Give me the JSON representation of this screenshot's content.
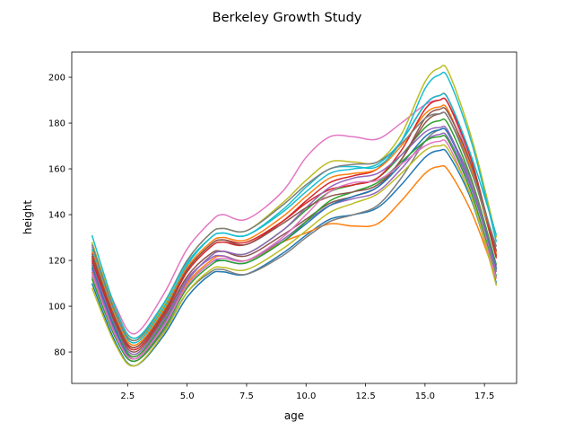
{
  "chart_data": {
    "type": "line",
    "title": "Berkeley Growth Study",
    "xlabel": "age",
    "ylabel": "height",
    "xlim": [
      0.15,
      18.85
    ],
    "ylim": [
      66.3,
      211
    ],
    "xticks": [
      2.5,
      5.0,
      7.5,
      10.0,
      12.5,
      15.0,
      17.5
    ],
    "xtick_labels": [
      "2.5",
      "5.0",
      "7.5",
      "10.0",
      "12.5",
      "15.0",
      "17.5"
    ],
    "yticks": [
      80,
      100,
      120,
      140,
      160,
      180,
      200
    ],
    "ytick_labels": [
      "80",
      "100",
      "120",
      "140",
      "160",
      "180",
      "200"
    ],
    "grid": false,
    "legend": "none",
    "colors": [
      "#1f77b4",
      "#ff7f0e",
      "#2ca02c",
      "#d62728",
      "#9467bd",
      "#8c564b",
      "#e377c2",
      "#7f7f7f",
      "#bcbd22",
      "#17becf"
    ],
    "x": [
      1,
      2,
      2.8,
      4,
      5,
      6,
      6.5,
      7.5,
      9,
      10,
      11,
      12,
      13,
      14,
      15,
      15.6,
      16,
      17,
      18
    ],
    "series": [
      {
        "values": [
          110,
          84,
          74,
          87,
          104,
          114,
          115,
          114,
          123,
          131,
          138,
          140,
          143,
          153,
          165,
          168,
          166,
          145,
          110
        ]
      },
      {
        "values": [
          115,
          88,
          78,
          92,
          110,
          120,
          122,
          120,
          128,
          132,
          136,
          135,
          136,
          146,
          158,
          161,
          159,
          140,
          112
        ]
      },
      {
        "values": [
          118,
          90,
          78,
          93,
          111,
          122,
          124,
          123,
          133,
          142,
          150,
          153,
          156,
          166,
          178,
          181,
          179,
          154,
          118
        ]
      },
      {
        "values": [
          122,
          93,
          81,
          96,
          115,
          126,
          128,
          127,
          137,
          146,
          154,
          157,
          160,
          172,
          188,
          192,
          190,
          162,
          122
        ]
      },
      {
        "values": [
          119,
          91,
          79,
          94,
          112,
          121,
          122,
          120,
          129,
          137,
          144,
          147,
          150,
          160,
          172,
          175,
          173,
          150,
          117
        ]
      },
      {
        "values": [
          121,
          92,
          80,
          95,
          113,
          123,
          124,
          122,
          131,
          138,
          145,
          148,
          152,
          164,
          180,
          184,
          182,
          158,
          121
        ]
      },
      {
        "values": [
          126,
          100,
          88,
          105,
          125,
          137,
          140,
          138,
          150,
          165,
          174,
          174,
          173,
          180,
          188,
          190,
          188,
          160,
          124
        ]
      },
      {
        "values": [
          113,
          86,
          76,
          89,
          106,
          115,
          116,
          114,
          122,
          130,
          137,
          140,
          144,
          156,
          172,
          177,
          175,
          153,
          116
        ]
      },
      {
        "values": [
          128,
          98,
          85,
          100,
          120,
          132,
          134,
          133,
          145,
          155,
          163,
          163,
          163,
          175,
          198,
          204,
          202,
          172,
          130
        ]
      },
      {
        "values": [
          125,
          96,
          84,
          99,
          118,
          130,
          132,
          131,
          142,
          152,
          160,
          161,
          161,
          172,
          195,
          201,
          199,
          170,
          128
        ]
      },
      {
        "values": [
          117,
          89,
          77,
          91,
          109,
          119,
          120,
          119,
          128,
          136,
          144,
          148,
          152,
          162,
          174,
          177,
          175,
          151,
          116
        ]
      },
      {
        "values": [
          124,
          95,
          83,
          98,
          117,
          128,
          130,
          129,
          139,
          148,
          156,
          158,
          160,
          170,
          184,
          187,
          185,
          158,
          123
        ]
      },
      {
        "values": [
          112,
          86,
          76,
          90,
          108,
          118,
          120,
          119,
          128,
          137,
          146,
          150,
          154,
          163,
          172,
          174,
          172,
          148,
          113
        ]
      },
      {
        "values": [
          120,
          93,
          82,
          97,
          116,
          127,
          129,
          128,
          137,
          145,
          151,
          153,
          156,
          168,
          186,
          190,
          188,
          162,
          121
        ]
      },
      {
        "values": [
          116,
          88,
          77,
          92,
          111,
          122,
          124,
          123,
          133,
          143,
          152,
          156,
          158,
          166,
          176,
          178,
          176,
          151,
          115
        ]
      },
      {
        "values": [
          123,
          94,
          82,
          97,
          116,
          127,
          129,
          127,
          136,
          143,
          148,
          150,
          153,
          164,
          182,
          186,
          184,
          160,
          124
        ]
      },
      {
        "values": [
          114,
          87,
          77,
          91,
          109,
          119,
          121,
          120,
          130,
          140,
          150,
          154,
          155,
          162,
          170,
          172,
          170,
          146,
          112
        ]
      },
      {
        "values": [
          127,
          97,
          85,
          101,
          120,
          132,
          134,
          133,
          144,
          153,
          160,
          162,
          163,
          171,
          182,
          184,
          182,
          157,
          126
        ]
      },
      {
        "values": [
          108,
          83,
          74,
          88,
          106,
          116,
          117,
          116,
          125,
          133,
          141,
          145,
          149,
          158,
          168,
          170,
          168,
          146,
          109
        ]
      },
      {
        "values": [
          131,
          99,
          86,
          101,
          119,
          130,
          132,
          131,
          141,
          150,
          158,
          160,
          162,
          172,
          188,
          192,
          190,
          164,
          131
        ]
      }
    ]
  }
}
